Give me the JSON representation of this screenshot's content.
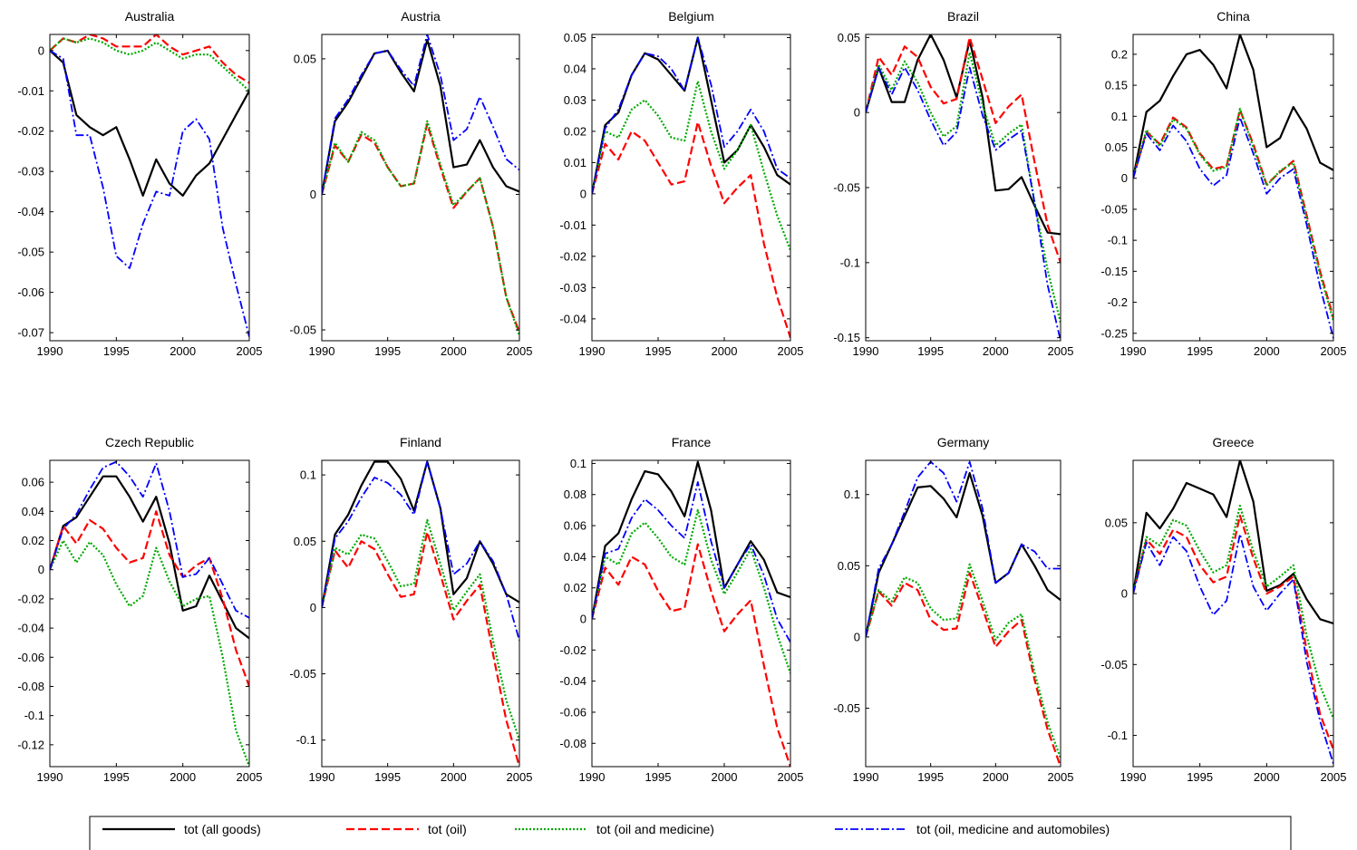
{
  "chart_data": {
    "type": "line",
    "x": [
      1990,
      1991,
      1992,
      1993,
      1994,
      1995,
      1996,
      1997,
      1998,
      1999,
      2000,
      2001,
      2002,
      2003,
      2004,
      2005
    ],
    "xlim": [
      1990,
      2005
    ],
    "xticks": [
      1990,
      1995,
      2000,
      2005
    ],
    "xtick_labels": [
      "1990",
      "1995",
      "2000",
      "2005"
    ],
    "grid": false,
    "legend_position": "bottom",
    "legend": [
      {
        "key": "all",
        "name": "tot (all goods)",
        "color": "#000000",
        "dash": "solid"
      },
      {
        "key": "oil",
        "name": "tot (oil)",
        "color": "#ff0000",
        "dash": "dashed"
      },
      {
        "key": "med",
        "name": "tot (oil and medicine)",
        "color": "#00aa00",
        "dash": "dotted"
      },
      {
        "key": "auto",
        "name": "tot (oil, medicine and automobiles)",
        "color": "#0000ff",
        "dash": "dashdot"
      }
    ],
    "panels": [
      {
        "title": "Australia",
        "ylim": [
          -0.072,
          0.004
        ],
        "yticks": [
          0,
          -0.01,
          -0.02,
          -0.03,
          -0.04,
          -0.05,
          -0.06,
          -0.07
        ],
        "ytick_labels": [
          "0",
          "-0.01",
          "-0.02",
          "-0.03",
          "-0.04",
          "-0.05",
          "-0.06",
          "-0.07"
        ],
        "series": {
          "all": [
            0,
            -0.003,
            -0.016,
            -0.019,
            -0.021,
            -0.019,
            -0.027,
            -0.036,
            -0.027,
            -0.033,
            -0.036,
            -0.031,
            -0.028,
            -0.022,
            -0.016,
            -0.01
          ],
          "oil": [
            0,
            0.003,
            0.002,
            0.004,
            0.003,
            0.001,
            0.001,
            0.001,
            0.004,
            0.001,
            -0.001,
            0,
            0.001,
            -0.003,
            -0.006,
            -0.008
          ],
          "med": [
            0,
            0.003,
            0.002,
            0.003,
            0.002,
            0,
            -0.001,
            0,
            0.002,
            0,
            -0.002,
            -0.001,
            -0.001,
            -0.004,
            -0.007,
            -0.01
          ],
          "auto": [
            0,
            -0.002,
            -0.021,
            -0.021,
            -0.034,
            -0.051,
            -0.054,
            -0.043,
            -0.035,
            -0.036,
            -0.02,
            -0.017,
            -0.022,
            -0.044,
            -0.058,
            -0.071
          ]
        }
      },
      {
        "title": "Austria",
        "ylim": [
          -0.054,
          0.059
        ],
        "yticks": [
          0.05,
          0,
          -0.05
        ],
        "ytick_labels": [
          "0.05",
          "0",
          "-0.05"
        ],
        "series": {
          "all": [
            0,
            0.027,
            0.034,
            0.043,
            0.052,
            0.053,
            0.045,
            0.038,
            0.057,
            0.04,
            0.01,
            0.011,
            0.02,
            0.01,
            0.003,
            0.001
          ],
          "oil": [
            0,
            0.018,
            0.012,
            0.022,
            0.019,
            0.01,
            0.003,
            0.004,
            0.026,
            0.01,
            -0.005,
            0.001,
            0.006,
            -0.012,
            -0.038,
            -0.051
          ],
          "med": [
            0,
            0.019,
            0.012,
            0.023,
            0.02,
            0.01,
            0.003,
            0.004,
            0.027,
            0.011,
            -0.004,
            0.001,
            0.006,
            -0.012,
            -0.038,
            -0.052
          ],
          "auto": [
            0,
            0.028,
            0.035,
            0.044,
            0.052,
            0.053,
            0.046,
            0.04,
            0.059,
            0.044,
            0.02,
            0.024,
            0.036,
            0.025,
            0.013,
            0.009
          ]
        }
      },
      {
        "title": "Belgium",
        "ylim": [
          -0.047,
          0.051
        ],
        "yticks": [
          0.05,
          0.04,
          0.03,
          0.02,
          0.01,
          0,
          -0.01,
          -0.02,
          -0.03,
          -0.04
        ],
        "ytick_labels": [
          "0.05",
          "0.04",
          "0.03",
          "0.02",
          "0.01",
          "0",
          "-0.01",
          "-0.02",
          "-0.03",
          "-0.04"
        ],
        "series": {
          "all": [
            0,
            0.022,
            0.026,
            0.038,
            0.045,
            0.043,
            0.038,
            0.033,
            0.05,
            0.03,
            0.01,
            0.014,
            0.022,
            0.015,
            0.006,
            0.003
          ],
          "oil": [
            0,
            0.016,
            0.011,
            0.02,
            0.017,
            0.01,
            0.003,
            0.004,
            0.023,
            0.009,
            -0.003,
            0.002,
            0.006,
            -0.016,
            -0.033,
            -0.046
          ],
          "med": [
            0,
            0.02,
            0.018,
            0.027,
            0.03,
            0.025,
            0.018,
            0.017,
            0.036,
            0.02,
            0.008,
            0.014,
            0.022,
            0.007,
            -0.007,
            -0.018
          ],
          "auto": [
            0,
            0.021,
            0.027,
            0.038,
            0.045,
            0.044,
            0.04,
            0.033,
            0.05,
            0.035,
            0.015,
            0.02,
            0.027,
            0.02,
            0.008,
            0.005
          ]
        }
      },
      {
        "title": "Brazil",
        "ylim": [
          -0.152,
          0.052
        ],
        "yticks": [
          0.05,
          0,
          -0.05,
          -0.1,
          -0.15
        ],
        "ytick_labels": [
          "0.05",
          "0",
          "-0.05",
          "-0.1",
          "-0.15"
        ],
        "series": {
          "all": [
            0,
            0.03,
            0.007,
            0.007,
            0.035,
            0.052,
            0.035,
            0.01,
            0.048,
            0.01,
            -0.052,
            -0.051,
            -0.043,
            -0.062,
            -0.08,
            -0.081
          ],
          "oil": [
            0,
            0.037,
            0.025,
            0.044,
            0.037,
            0.017,
            0.006,
            0.009,
            0.05,
            0.022,
            -0.007,
            0.004,
            0.012,
            -0.033,
            -0.075,
            -0.1
          ],
          "med": [
            0,
            0.032,
            0.015,
            0.034,
            0.02,
            0,
            -0.016,
            -0.009,
            0.04,
            0.005,
            -0.022,
            -0.014,
            -0.008,
            -0.06,
            -0.105,
            -0.14
          ],
          "auto": [
            0,
            0.03,
            0.012,
            0.03,
            0.015,
            -0.005,
            -0.022,
            -0.013,
            0.03,
            -0.002,
            -0.025,
            -0.018,
            -0.012,
            -0.06,
            -0.115,
            -0.152
          ]
        }
      },
      {
        "title": "China",
        "ylim": [
          -0.262,
          0.232
        ],
        "yticks": [
          0.2,
          0.15,
          0.1,
          0.05,
          0,
          -0.05,
          -0.1,
          -0.15,
          -0.2,
          -0.25
        ],
        "ytick_labels": [
          "0.2",
          "0.15",
          "0.1",
          "0.05",
          "0",
          "-0.05",
          "-0.1",
          "-0.15",
          "-0.2",
          "-0.25"
        ],
        "series": {
          "all": [
            0,
            0.107,
            0.125,
            0.165,
            0.2,
            0.207,
            0.183,
            0.145,
            0.232,
            0.175,
            0.05,
            0.065,
            0.115,
            0.08,
            0.025,
            0.013
          ],
          "oil": [
            0,
            0.075,
            0.055,
            0.098,
            0.082,
            0.04,
            0.015,
            0.02,
            0.11,
            0.055,
            -0.01,
            0.01,
            0.028,
            -0.06,
            -0.15,
            -0.225
          ],
          "med": [
            0,
            0.078,
            0.052,
            0.095,
            0.08,
            0.038,
            0.012,
            0.018,
            0.112,
            0.05,
            -0.012,
            0.012,
            0.025,
            -0.065,
            -0.155,
            -0.23
          ],
          "auto": [
            0,
            0.072,
            0.045,
            0.085,
            0.06,
            0.015,
            -0.012,
            0.005,
            0.098,
            0.04,
            -0.025,
            0,
            0.015,
            -0.075,
            -0.175,
            -0.258
          ]
        }
      },
      {
        "title": "Czech Republic",
        "ylim": [
          -0.135,
          0.075
        ],
        "yticks": [
          0.06,
          0.04,
          0.02,
          0,
          -0.02,
          -0.04,
          -0.06,
          -0.08,
          -0.1,
          -0.12
        ],
        "ytick_labels": [
          "0.06",
          "0.04",
          "0.02",
          "0",
          "-0.02",
          "-0.04",
          "-0.06",
          "-0.08",
          "-0.1",
          "-0.12"
        ],
        "series": {
          "all": [
            0,
            0.03,
            0.036,
            0.05,
            0.064,
            0.064,
            0.05,
            0.033,
            0.05,
            0.018,
            -0.028,
            -0.025,
            -0.004,
            -0.022,
            -0.04,
            -0.047
          ],
          "oil": [
            0,
            0.03,
            0.018,
            0.034,
            0.028,
            0.015,
            0.005,
            0.008,
            0.04,
            0.01,
            -0.005,
            0.003,
            0.008,
            -0.02,
            -0.055,
            -0.08
          ],
          "med": [
            0,
            0.02,
            0.005,
            0.019,
            0.01,
            -0.01,
            -0.025,
            -0.018,
            0.015,
            -0.008,
            -0.025,
            -0.02,
            -0.018,
            -0.06,
            -0.11,
            -0.135
          ],
          "auto": [
            0,
            0.028,
            0.038,
            0.055,
            0.07,
            0.074,
            0.064,
            0.05,
            0.073,
            0.04,
            -0.005,
            -0.003,
            0.008,
            -0.01,
            -0.028,
            -0.033
          ]
        }
      },
      {
        "title": "Finland",
        "ylim": [
          -0.12,
          0.111
        ],
        "yticks": [
          0.1,
          0.05,
          0,
          -0.05,
          -0.1
        ],
        "ytick_labels": [
          "0.1",
          "0.05",
          "0",
          "-0.05",
          "-0.1"
        ],
        "series": {
          "all": [
            0,
            0.055,
            0.07,
            0.092,
            0.11,
            0.11,
            0.097,
            0.073,
            0.11,
            0.075,
            0.01,
            0.022,
            0.05,
            0.033,
            0.01,
            0.004
          ],
          "oil": [
            0,
            0.043,
            0.03,
            0.05,
            0.044,
            0.025,
            0.008,
            0.01,
            0.057,
            0.025,
            -0.009,
            0.005,
            0.017,
            -0.035,
            -0.085,
            -0.12
          ],
          "med": [
            0,
            0.045,
            0.04,
            0.055,
            0.052,
            0.035,
            0.016,
            0.018,
            0.066,
            0.033,
            -0.002,
            0.012,
            0.025,
            -0.025,
            -0.07,
            -0.1
          ],
          "auto": [
            0,
            0.052,
            0.065,
            0.083,
            0.098,
            0.094,
            0.085,
            0.07,
            0.11,
            0.075,
            0.025,
            0.033,
            0.05,
            0.035,
            0.01,
            -0.025
          ]
        }
      },
      {
        "title": "France",
        "ylim": [
          -0.095,
          0.102
        ],
        "yticks": [
          0.1,
          0.08,
          0.06,
          0.04,
          0.02,
          0,
          -0.02,
          -0.04,
          -0.06,
          -0.08
        ],
        "ytick_labels": [
          "0.1",
          "0.08",
          "0.06",
          "0.04",
          "0.02",
          "0",
          "-0.02",
          "-0.04",
          "-0.06",
          "-0.08"
        ],
        "series": {
          "all": [
            0,
            0.047,
            0.055,
            0.077,
            0.095,
            0.093,
            0.082,
            0.066,
            0.101,
            0.07,
            0.02,
            0.035,
            0.05,
            0.038,
            0.017,
            0.014
          ],
          "oil": [
            0,
            0.033,
            0.022,
            0.04,
            0.035,
            0.018,
            0.005,
            0.007,
            0.048,
            0.018,
            -0.008,
            0.003,
            0.012,
            -0.03,
            -0.07,
            -0.095
          ],
          "med": [
            0,
            0.04,
            0.035,
            0.055,
            0.062,
            0.052,
            0.04,
            0.035,
            0.07,
            0.038,
            0.016,
            0.03,
            0.045,
            0.02,
            -0.01,
            -0.035
          ],
          "auto": [
            0,
            0.042,
            0.045,
            0.065,
            0.077,
            0.07,
            0.06,
            0.052,
            0.088,
            0.05,
            0.02,
            0.035,
            0.048,
            0.028,
            0,
            -0.015
          ]
        }
      },
      {
        "title": "Germany",
        "ylim": [
          -0.091,
          0.124
        ],
        "yticks": [
          0.1,
          0.05,
          0,
          -0.05
        ],
        "ytick_labels": [
          "0.1",
          "0.05",
          "0",
          "-0.05"
        ],
        "series": {
          "all": [
            0,
            0.045,
            0.065,
            0.085,
            0.105,
            0.106,
            0.097,
            0.084,
            0.115,
            0.085,
            0.038,
            0.045,
            0.065,
            0.05,
            0.033,
            0.026
          ],
          "oil": [
            0,
            0.032,
            0.022,
            0.038,
            0.033,
            0.012,
            0.005,
            0.006,
            0.045,
            0.02,
            -0.007,
            0.004,
            0.012,
            -0.03,
            -0.065,
            -0.091
          ],
          "med": [
            0,
            0.033,
            0.025,
            0.042,
            0.038,
            0.02,
            0.012,
            0.013,
            0.051,
            0.025,
            -0.002,
            0.01,
            0.016,
            -0.025,
            -0.06,
            -0.085
          ],
          "auto": [
            0,
            0.048,
            0.065,
            0.088,
            0.112,
            0.123,
            0.115,
            0.095,
            0.123,
            0.09,
            0.038,
            0.045,
            0.065,
            0.06,
            0.048,
            0.048
          ]
        }
      },
      {
        "title": "Greece",
        "ylim": [
          -0.122,
          0.094
        ],
        "yticks": [
          0.05,
          0,
          -0.05,
          -0.1
        ],
        "ytick_labels": [
          "0.05",
          "0",
          "-0.05",
          "-0.1"
        ],
        "series": {
          "all": [
            0,
            0.057,
            0.046,
            0.06,
            0.078,
            0.074,
            0.07,
            0.054,
            0.094,
            0.065,
            0.002,
            0.006,
            0.014,
            -0.004,
            -0.018,
            -0.021
          ],
          "oil": [
            0,
            0.038,
            0.028,
            0.045,
            0.04,
            0.02,
            0.008,
            0.012,
            0.055,
            0.025,
            0,
            0.005,
            0.012,
            -0.04,
            -0.085,
            -0.11
          ],
          "med": [
            0,
            0.04,
            0.034,
            0.052,
            0.048,
            0.03,
            0.015,
            0.02,
            0.062,
            0.03,
            0.005,
            0.012,
            0.02,
            -0.03,
            -0.065,
            -0.088
          ],
          "auto": [
            0,
            0.036,
            0.02,
            0.04,
            0.03,
            0.005,
            -0.015,
            -0.005,
            0.042,
            0.005,
            -0.012,
            0,
            0.01,
            -0.048,
            -0.09,
            -0.12
          ]
        }
      }
    ]
  }
}
